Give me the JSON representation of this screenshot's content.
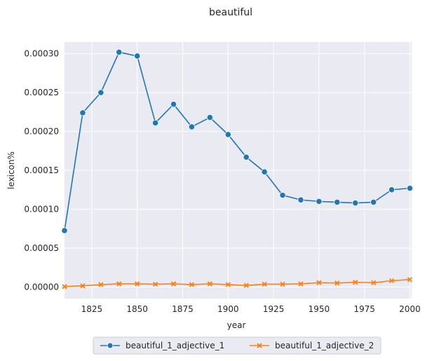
{
  "chart_data": {
    "type": "line",
    "title": "beautiful",
    "xlabel": "year",
    "ylabel": "lexicon%",
    "xlim": [
      1810,
      2001
    ],
    "ylim": [
      -1.5e-05,
      0.000315
    ],
    "xticks": [
      1825,
      1850,
      1875,
      1900,
      1925,
      1950,
      1975,
      2000
    ],
    "yticks": [
      0.0,
      5e-05,
      0.0001,
      0.00015,
      0.0002,
      0.00025,
      0.0003
    ],
    "ytick_labels": [
      "0.00000",
      "0.00005",
      "0.00010",
      "0.00015",
      "0.00020",
      "0.00025",
      "0.00030"
    ],
    "grid": true,
    "legend_position": "bottom-center",
    "x": [
      1810,
      1820,
      1830,
      1840,
      1850,
      1860,
      1870,
      1880,
      1890,
      1900,
      1910,
      1920,
      1930,
      1940,
      1950,
      1960,
      1970,
      1980,
      1990,
      2000
    ],
    "series": [
      {
        "name": "beautiful_1_adjective_1",
        "marker": "circle",
        "color": "#1f77b4",
        "values": [
          7.25e-05,
          0.000224,
          0.00025,
          0.000302,
          0.000297,
          0.000211,
          0.000235,
          0.000206,
          0.000218,
          0.000196,
          0.000167,
          0.000148,
          0.000118,
          0.000112,
          0.00011,
          0.000109,
          0.000108,
          0.000109,
          0.000125,
          0.000127
        ]
      },
      {
        "name": "beautiful_1_adjective_2",
        "marker": "x",
        "color": "#ff7f0e",
        "values": [
          5e-07,
          1.5e-06,
          3e-06,
          4e-06,
          4e-06,
          3.5e-06,
          4e-06,
          3e-06,
          4e-06,
          3e-06,
          2e-06,
          3.5e-06,
          3.5e-06,
          4e-06,
          5.5e-06,
          5e-06,
          6e-06,
          5.5e-06,
          8e-06,
          9.5e-06
        ]
      }
    ],
    "background_color": "#eaeaf2",
    "grid_color": "#ffffff"
  }
}
